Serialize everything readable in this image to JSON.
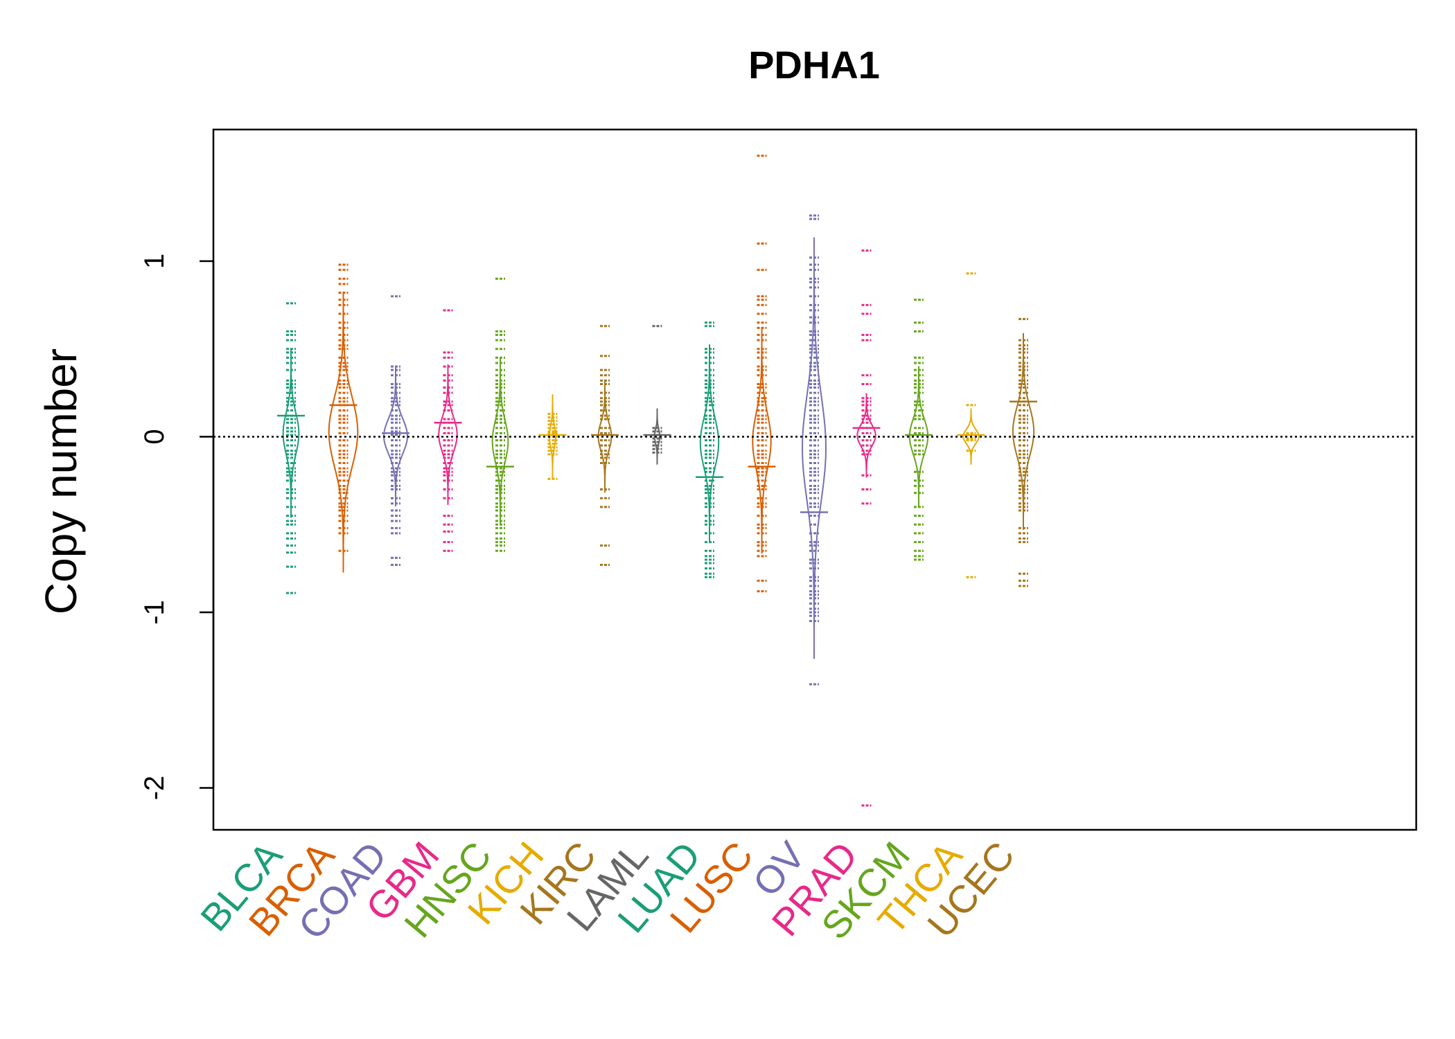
{
  "chart_data": {
    "type": "beanplot",
    "title": "PDHA1",
    "xlabel": "",
    "ylabel": "Copy number",
    "ylim": [
      -2.25,
      1.75
    ],
    "yticks": [
      {
        "value": 1,
        "label": "1"
      },
      {
        "value": 0,
        "label": "0"
      },
      {
        "value": -1,
        "label": "-1"
      },
      {
        "value": -2,
        "label": "-2"
      }
    ],
    "reference_line": 0,
    "grid": false,
    "series": [
      {
        "name": "BLCA",
        "color": "#1B9E77",
        "mean": 0.12,
        "spread": 0.12,
        "density_width": 0.3,
        "values": [
          0.76,
          0.6,
          0.58,
          0.55,
          0.5,
          0.48,
          0.45,
          0.42,
          0.38,
          0.32,
          0.3,
          0.28,
          0.25,
          0.22,
          0.2,
          0.18,
          0.15,
          0.12,
          0.1,
          0.08,
          0.05,
          0.03,
          0.01,
          -0.02,
          -0.05,
          -0.08,
          -0.1,
          -0.12,
          -0.15,
          -0.18,
          -0.2,
          -0.22,
          -0.25,
          -0.3,
          -0.32,
          -0.35,
          -0.4,
          -0.45,
          -0.48,
          -0.5,
          -0.55,
          -0.58,
          -0.62,
          -0.66,
          -0.74,
          -0.89
        ]
      },
      {
        "name": "BRCA",
        "color": "#D95F02",
        "mean": 0.18,
        "spread": 0.2,
        "density_width": 0.55,
        "values": [
          0.98,
          0.95,
          0.9,
          0.87,
          0.82,
          0.78,
          0.75,
          0.7,
          0.65,
          0.62,
          0.58,
          0.55,
          0.52,
          0.5,
          0.45,
          0.42,
          0.4,
          0.38,
          0.35,
          0.32,
          0.3,
          0.28,
          0.25,
          0.22,
          0.2,
          0.18,
          0.15,
          0.12,
          0.1,
          0.08,
          0.05,
          0.02,
          -0.02,
          -0.05,
          -0.08,
          -0.1,
          -0.12,
          -0.15,
          -0.18,
          -0.2,
          -0.22,
          -0.25,
          -0.28,
          -0.3,
          -0.32,
          -0.35,
          -0.38,
          -0.4,
          -0.42,
          -0.45,
          -0.48,
          -0.52,
          -0.55,
          -0.65
        ]
      },
      {
        "name": "COAD",
        "color": "#7570B3",
        "mean": 0.02,
        "spread": 0.1,
        "density_width": 0.45,
        "values": [
          0.8,
          0.4,
          0.38,
          0.35,
          0.3,
          0.28,
          0.25,
          0.22,
          0.2,
          0.18,
          0.15,
          0.12,
          0.1,
          0.08,
          0.05,
          0.03,
          0.01,
          -0.02,
          -0.05,
          -0.08,
          -0.1,
          -0.12,
          -0.15,
          -0.18,
          -0.2,
          -0.22,
          -0.25,
          -0.28,
          -0.3,
          -0.35,
          -0.38,
          -0.42,
          -0.45,
          -0.48,
          -0.52,
          -0.55,
          -0.69,
          -0.73
        ]
      },
      {
        "name": "GBM",
        "color": "#E7298A",
        "mean": 0.08,
        "spread": 0.1,
        "density_width": 0.35,
        "values": [
          0.72,
          0.48,
          0.45,
          0.4,
          0.35,
          0.32,
          0.28,
          0.25,
          0.2,
          0.18,
          0.15,
          0.1,
          0.08,
          0.05,
          0.02,
          -0.02,
          -0.05,
          -0.08,
          -0.1,
          -0.12,
          -0.15,
          -0.18,
          -0.2,
          -0.22,
          -0.25,
          -0.3,
          -0.35,
          -0.45,
          -0.5,
          -0.54,
          -0.6,
          -0.65
        ]
      },
      {
        "name": "HNSC",
        "color": "#66A61E",
        "mean": -0.17,
        "spread": 0.12,
        "density_width": 0.3,
        "values": [
          0.9,
          0.6,
          0.58,
          0.55,
          0.5,
          0.45,
          0.42,
          0.38,
          0.35,
          0.32,
          0.3,
          0.28,
          0.25,
          0.22,
          0.2,
          0.18,
          0.15,
          0.12,
          0.1,
          0.08,
          0.05,
          0.02,
          -0.02,
          -0.05,
          -0.08,
          -0.1,
          -0.12,
          -0.15,
          -0.18,
          -0.2,
          -0.22,
          -0.25,
          -0.28,
          -0.3,
          -0.32,
          -0.35,
          -0.38,
          -0.4,
          -0.42,
          -0.45,
          -0.48,
          -0.5,
          -0.52,
          -0.55,
          -0.58,
          -0.6,
          -0.62,
          -0.65
        ]
      },
      {
        "name": "KICH",
        "color": "#E6AB02",
        "mean": 0.01,
        "spread": 0.06,
        "density_width": 0.12,
        "values": [
          0.13,
          0.11,
          0.09,
          0.07,
          0.05,
          0.03,
          0.02,
          0.0,
          -0.02,
          -0.04,
          -0.06,
          -0.08,
          -0.1,
          -0.24
        ]
      },
      {
        "name": "KIRC",
        "color": "#A6761D",
        "mean": 0.01,
        "spread": 0.08,
        "density_width": 0.25,
        "values": [
          0.63,
          0.46,
          0.38,
          0.35,
          0.32,
          0.3,
          0.25,
          0.22,
          0.2,
          0.18,
          0.15,
          0.12,
          0.1,
          0.05,
          0.02,
          -0.02,
          -0.05,
          -0.08,
          -0.1,
          -0.12,
          -0.15,
          -0.3,
          -0.35,
          -0.4,
          -0.62,
          -0.73
        ]
      },
      {
        "name": "LAML",
        "color": "#666666",
        "mean": 0.01,
        "spread": 0.04,
        "density_width": 0.1,
        "values": [
          0.63,
          0.05,
          0.03,
          0.01,
          -0.01,
          -0.03,
          -0.05,
          -0.07,
          -0.09
        ]
      },
      {
        "name": "LUAD",
        "color": "#1B9E77",
        "mean": -0.23,
        "spread": 0.14,
        "density_width": 0.35,
        "values": [
          0.65,
          0.63,
          0.5,
          0.48,
          0.45,
          0.42,
          0.38,
          0.35,
          0.32,
          0.3,
          0.28,
          0.25,
          0.22,
          0.2,
          0.18,
          0.15,
          0.12,
          0.1,
          0.08,
          0.05,
          0.02,
          -0.02,
          -0.05,
          -0.08,
          -0.1,
          -0.12,
          -0.15,
          -0.18,
          -0.2,
          -0.25,
          -0.28,
          -0.3,
          -0.32,
          -0.35,
          -0.38,
          -0.4,
          -0.45,
          -0.48,
          -0.5,
          -0.55,
          -0.6,
          -0.65,
          -0.68,
          -0.7,
          -0.72,
          -0.75,
          -0.78,
          -0.8
        ]
      },
      {
        "name": "LUSC",
        "color": "#D95F02",
        "mean": -0.17,
        "spread": 0.16,
        "density_width": 0.35,
        "values": [
          1.6,
          1.1,
          0.95,
          0.8,
          0.78,
          0.75,
          0.7,
          0.65,
          0.62,
          0.58,
          0.55,
          0.5,
          0.48,
          0.45,
          0.4,
          0.38,
          0.35,
          0.3,
          0.28,
          0.25,
          0.22,
          0.2,
          0.18,
          0.15,
          0.12,
          0.1,
          0.08,
          0.05,
          0.02,
          -0.02,
          -0.05,
          -0.08,
          -0.1,
          -0.12,
          -0.15,
          -0.18,
          -0.2,
          -0.22,
          -0.25,
          -0.28,
          -0.3,
          -0.35,
          -0.38,
          -0.4,
          -0.45,
          -0.5,
          -0.52,
          -0.55,
          -0.6,
          -0.62,
          -0.65,
          -0.68,
          -0.82,
          -0.88
        ]
      },
      {
        "name": "OV",
        "color": "#7570B3",
        "mean": -0.43,
        "spread": 0.3,
        "density_width": 0.45,
        "values": [
          1.26,
          1.24,
          1.02,
          0.98,
          0.95,
          0.9,
          0.88,
          0.85,
          0.8,
          0.75,
          0.72,
          0.68,
          0.65,
          0.6,
          0.58,
          0.55,
          0.52,
          0.5,
          0.48,
          0.45,
          0.42,
          0.4,
          0.38,
          0.35,
          0.32,
          0.3,
          0.28,
          0.25,
          0.22,
          0.2,
          0.18,
          0.15,
          0.12,
          0.1,
          0.08,
          0.05,
          0.02,
          -0.02,
          -0.05,
          -0.08,
          -0.1,
          -0.12,
          -0.15,
          -0.18,
          -0.2,
          -0.22,
          -0.25,
          -0.28,
          -0.3,
          -0.32,
          -0.35,
          -0.38,
          -0.4,
          -0.45,
          -0.5,
          -0.55,
          -0.6,
          -0.62,
          -0.65,
          -0.7,
          -0.72,
          -0.75,
          -0.8,
          -0.82,
          -0.85,
          -0.88,
          -0.9,
          -0.92,
          -0.95,
          -0.98,
          -1.0,
          -1.02,
          -1.05,
          -1.41
        ]
      },
      {
        "name": "PRAD",
        "color": "#E7298A",
        "mean": 0.05,
        "spread": 0.06,
        "density_width": 0.35,
        "values": [
          1.06,
          0.75,
          0.7,
          0.58,
          0.55,
          0.35,
          0.3,
          0.22,
          0.2,
          0.18,
          0.15,
          0.12,
          0.1,
          0.08,
          0.05,
          0.02,
          -0.02,
          -0.05,
          -0.08,
          -0.1,
          -0.22,
          -0.3,
          -0.38,
          -2.1
        ]
      },
      {
        "name": "SKCM",
        "color": "#66A61E",
        "mean": 0.01,
        "spread": 0.1,
        "density_width": 0.35,
        "values": [
          0.78,
          0.65,
          0.6,
          0.45,
          0.42,
          0.38,
          0.35,
          0.32,
          0.3,
          0.28,
          0.25,
          0.2,
          0.18,
          0.15,
          0.12,
          0.1,
          0.05,
          0.02,
          -0.02,
          -0.05,
          -0.08,
          -0.1,
          -0.2,
          -0.25,
          -0.28,
          -0.32,
          -0.4,
          -0.45,
          -0.5,
          -0.55,
          -0.6,
          -0.65,
          -0.68,
          -0.7
        ]
      },
      {
        "name": "THCA",
        "color": "#E6AB02",
        "mean": 0.01,
        "spread": 0.04,
        "density_width": 0.3,
        "values": [
          0.93,
          0.18,
          0.02,
          0.01,
          -0.01,
          -0.02,
          -0.08,
          -0.8
        ]
      },
      {
        "name": "UCEC",
        "color": "#A6761D",
        "mean": 0.2,
        "spread": 0.14,
        "density_width": 0.4,
        "values": [
          0.67,
          0.55,
          0.52,
          0.5,
          0.48,
          0.45,
          0.42,
          0.4,
          0.38,
          0.35,
          0.32,
          0.3,
          0.28,
          0.25,
          0.22,
          0.2,
          0.18,
          0.15,
          0.12,
          0.1,
          0.08,
          0.05,
          0.02,
          -0.02,
          -0.05,
          -0.08,
          -0.1,
          -0.12,
          -0.15,
          -0.18,
          -0.2,
          -0.22,
          -0.25,
          -0.28,
          -0.3,
          -0.32,
          -0.35,
          -0.38,
          -0.4,
          -0.42,
          -0.52,
          -0.55,
          -0.58,
          -0.6,
          -0.78,
          -0.82,
          -0.85
        ]
      }
    ]
  }
}
